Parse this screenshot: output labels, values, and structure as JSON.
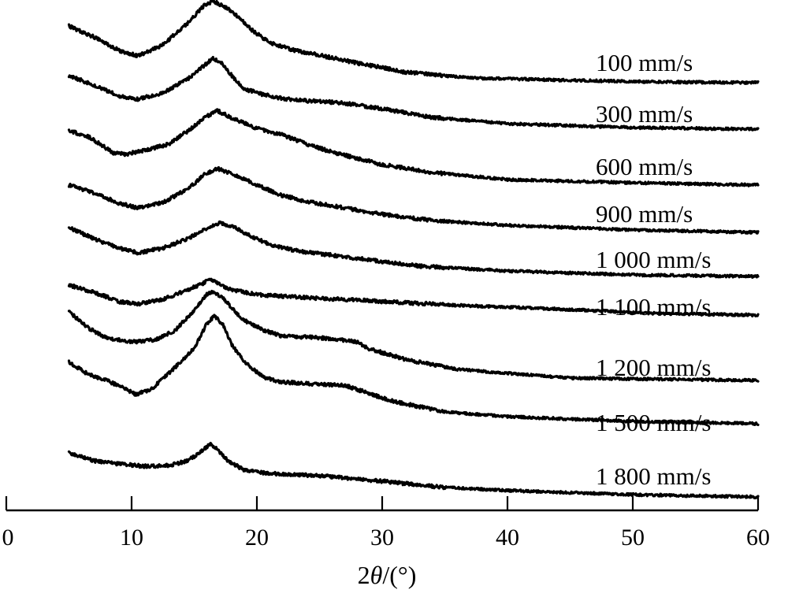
{
  "chart_data": {
    "type": "line",
    "title": "",
    "xlabel_prefix": "2",
    "xlabel_symbol": "θ",
    "xlabel_suffix": "/(°)",
    "ylabel": "",
    "xlim": [
      0,
      60
    ],
    "x_ticks": [
      "0",
      "10",
      "20",
      "30",
      "40",
      "50",
      "60"
    ],
    "grid": false,
    "stacked_offset": true,
    "series": [
      {
        "name": "100 mm/s",
        "points": [
          [
            5,
            74
          ],
          [
            7,
            60
          ],
          [
            9,
            43
          ],
          [
            10.5,
            36
          ],
          [
            12.5,
            50
          ],
          [
            14.5,
            78
          ],
          [
            15.8,
            100
          ],
          [
            16.5,
            106
          ],
          [
            17.5,
            98
          ],
          [
            18.5,
            86
          ],
          [
            19.5,
            70
          ],
          [
            21,
            53
          ],
          [
            23,
            43
          ],
          [
            25,
            37
          ],
          [
            28,
            27
          ],
          [
            32,
            15
          ],
          [
            37,
            8
          ],
          [
            45,
            5
          ],
          [
            52,
            3
          ],
          [
            60,
            2
          ]
        ]
      },
      {
        "name": "300 mm/s",
        "points": [
          [
            5,
            72
          ],
          [
            7,
            60
          ],
          [
            9,
            46
          ],
          [
            10.5,
            42
          ],
          [
            12.5,
            50
          ],
          [
            14.5,
            68
          ],
          [
            15.8,
            85
          ],
          [
            16.5,
            94
          ],
          [
            17.2,
            87
          ],
          [
            18,
            72
          ],
          [
            19,
            55
          ],
          [
            20.5,
            48
          ],
          [
            22,
            43
          ],
          [
            24,
            40
          ],
          [
            26.5,
            38
          ],
          [
            30,
            30
          ],
          [
            34,
            19
          ],
          [
            40,
            11
          ],
          [
            50,
            6
          ],
          [
            60,
            4
          ]
        ]
      },
      {
        "name": "600 mm/s",
        "points": [
          [
            5,
            72
          ],
          [
            6.5,
            65
          ],
          [
            7.5,
            55
          ],
          [
            8.5,
            44
          ],
          [
            9.5,
            42
          ],
          [
            11,
            47
          ],
          [
            13,
            55
          ],
          [
            14.5,
            72
          ],
          [
            16,
            90
          ],
          [
            16.8,
            98
          ],
          [
            18,
            88
          ],
          [
            20,
            75
          ],
          [
            22,
            67
          ],
          [
            24,
            55
          ],
          [
            26,
            45
          ],
          [
            28,
            37
          ],
          [
            30,
            29
          ],
          [
            34,
            19
          ],
          [
            40,
            10
          ],
          [
            50,
            6
          ],
          [
            60,
            3
          ]
        ]
      },
      {
        "name": "900 mm/s",
        "points": [
          [
            5,
            62
          ],
          [
            7,
            52
          ],
          [
            9,
            39
          ],
          [
            10.5,
            33
          ],
          [
            12.5,
            40
          ],
          [
            14.5,
            57
          ],
          [
            15.8,
            75
          ],
          [
            16.8,
            83
          ],
          [
            18,
            77
          ],
          [
            20,
            62
          ],
          [
            22,
            49
          ],
          [
            24,
            41
          ],
          [
            27,
            33
          ],
          [
            30,
            25
          ],
          [
            34,
            17
          ],
          [
            40,
            11
          ],
          [
            50,
            5
          ],
          [
            60,
            2
          ]
        ]
      },
      {
        "name": "1 000 mm/s",
        "points": [
          [
            5,
            66
          ],
          [
            7,
            52
          ],
          [
            9,
            40
          ],
          [
            10.5,
            34
          ],
          [
            12.5,
            40
          ],
          [
            14.5,
            52
          ],
          [
            16,
            65
          ],
          [
            17,
            72
          ],
          [
            18,
            68
          ],
          [
            19.5,
            55
          ],
          [
            21,
            45
          ],
          [
            23,
            37
          ],
          [
            26,
            31
          ],
          [
            29,
            25
          ],
          [
            33,
            17
          ],
          [
            40,
            11
          ],
          [
            50,
            6
          ],
          [
            60,
            4
          ]
        ]
      },
      {
        "name": "1 100 mm/s",
        "points": [
          [
            5,
            56
          ],
          [
            7,
            47
          ],
          [
            9,
            35
          ],
          [
            10.5,
            32
          ],
          [
            12.5,
            38
          ],
          [
            14.5,
            50
          ],
          [
            15.8,
            59
          ],
          [
            16.3,
            64
          ],
          [
            17,
            57
          ],
          [
            18,
            50
          ],
          [
            20,
            44
          ],
          [
            24,
            40
          ],
          [
            28,
            37
          ],
          [
            35,
            31
          ],
          [
            45,
            25
          ],
          [
            52,
            20
          ],
          [
            60,
            18
          ]
        ]
      },
      {
        "name": "1 200 mm/s",
        "points": [
          [
            5,
            101
          ],
          [
            6.5,
            81
          ],
          [
            8,
            68
          ],
          [
            9.5,
            64
          ],
          [
            10.5,
            63
          ],
          [
            12,
            66
          ],
          [
            13.5,
            78
          ],
          [
            15,
            103
          ],
          [
            16,
            123
          ],
          [
            16.6,
            127
          ],
          [
            17.5,
            115
          ],
          [
            18.8,
            92
          ],
          [
            20.5,
            78
          ],
          [
            22,
            70
          ],
          [
            24,
            69
          ],
          [
            26,
            67
          ],
          [
            28,
            63
          ],
          [
            29,
            54
          ],
          [
            32,
            40
          ],
          [
            36,
            28
          ],
          [
            45,
            17
          ],
          [
            60,
            14
          ]
        ]
      },
      {
        "name": "1 500 mm/s",
        "points": [
          [
            5,
            103
          ],
          [
            6.5,
            88
          ],
          [
            8,
            80
          ],
          [
            9.5,
            70
          ],
          [
            10.3,
            62
          ],
          [
            11.5,
            68
          ],
          [
            13.5,
            97
          ],
          [
            15,
            121
          ],
          [
            16,
            152
          ],
          [
            16.6,
            162
          ],
          [
            17.3,
            151
          ],
          [
            18,
            125
          ],
          [
            19,
            104
          ],
          [
            20.5,
            84
          ],
          [
            22,
            78
          ],
          [
            25,
            75
          ],
          [
            27,
            74
          ],
          [
            29,
            63
          ],
          [
            31,
            53
          ],
          [
            35,
            40
          ],
          [
            40,
            34
          ],
          [
            50,
            28
          ],
          [
            60,
            25
          ]
        ]
      },
      {
        "name": "1 800 mm/s",
        "points": [
          [
            5,
            57
          ],
          [
            7,
            47
          ],
          [
            9,
            43
          ],
          [
            11,
            40
          ],
          [
            13,
            41
          ],
          [
            14.5,
            47
          ],
          [
            15.5,
            58
          ],
          [
            16.3,
            68
          ],
          [
            16.8,
            62
          ],
          [
            17.7,
            47
          ],
          [
            19,
            35
          ],
          [
            21,
            31
          ],
          [
            25,
            28
          ],
          [
            30,
            21
          ],
          [
            35,
            13
          ],
          [
            42,
            8
          ],
          [
            50,
            4
          ],
          [
            60,
            1
          ]
        ]
      }
    ]
  }
}
